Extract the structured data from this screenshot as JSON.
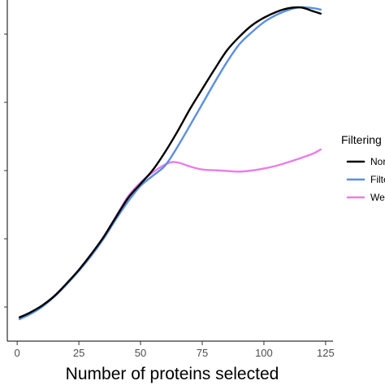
{
  "chart_data": {
    "type": "line",
    "title": "",
    "xlabel": "Number of proteins selected",
    "ylabel": "",
    "xlim": [
      -4,
      128
    ],
    "ylim": [
      0.0,
      1.0
    ],
    "x_ticks": [
      0,
      25,
      50,
      75,
      100,
      125
    ],
    "x_tick_labels": [
      "0",
      "25",
      "50",
      "75",
      "100",
      "125"
    ],
    "y_ticks": [
      0.1,
      0.3,
      0.5,
      0.7,
      0.9
    ],
    "grid": false,
    "legend": {
      "title": "Filtering",
      "position": "right",
      "labels": [
        "Nor",
        "Filte",
        "Wei"
      ]
    },
    "series": [
      {
        "color": "#000000",
        "x": [
          1,
          5,
          10,
          15,
          20,
          25,
          30,
          35,
          40,
          45,
          50,
          55,
          60,
          65,
          70,
          75,
          80,
          85,
          90,
          95,
          100,
          105,
          110,
          115,
          120,
          123
        ],
        "y": [
          0.07,
          0.083,
          0.104,
          0.132,
          0.169,
          0.209,
          0.255,
          0.305,
          0.363,
          0.42,
          0.461,
          0.502,
          0.555,
          0.615,
          0.68,
          0.739,
          0.797,
          0.852,
          0.892,
          0.925,
          0.948,
          0.965,
          0.976,
          0.978,
          0.967,
          0.96
        ]
      },
      {
        "color": "#5b8fe0",
        "x": [
          1,
          5,
          10,
          15,
          20,
          25,
          30,
          35,
          40,
          45,
          50,
          55,
          60,
          65,
          70,
          75,
          80,
          85,
          90,
          95,
          100,
          105,
          110,
          115,
          120,
          123
        ],
        "y": [
          0.065,
          0.078,
          0.1,
          0.13,
          0.166,
          0.206,
          0.25,
          0.3,
          0.357,
          0.41,
          0.455,
          0.485,
          0.515,
          0.57,
          0.632,
          0.695,
          0.758,
          0.818,
          0.87,
          0.905,
          0.935,
          0.956,
          0.971,
          0.979,
          0.976,
          0.972
        ]
      },
      {
        "color": "#e87ee8",
        "x": [
          1,
          5,
          10,
          15,
          20,
          25,
          30,
          35,
          40,
          45,
          50,
          55,
          60,
          63,
          66,
          70,
          75,
          80,
          85,
          90,
          95,
          100,
          105,
          110,
          115,
          120,
          123
        ],
        "y": [
          0.064,
          0.08,
          0.102,
          0.13,
          0.167,
          0.208,
          0.252,
          0.305,
          0.365,
          0.425,
          0.465,
          0.495,
          0.518,
          0.525,
          0.522,
          0.512,
          0.503,
          0.501,
          0.499,
          0.497,
          0.5,
          0.506,
          0.514,
          0.525,
          0.537,
          0.55,
          0.562
        ]
      }
    ]
  }
}
